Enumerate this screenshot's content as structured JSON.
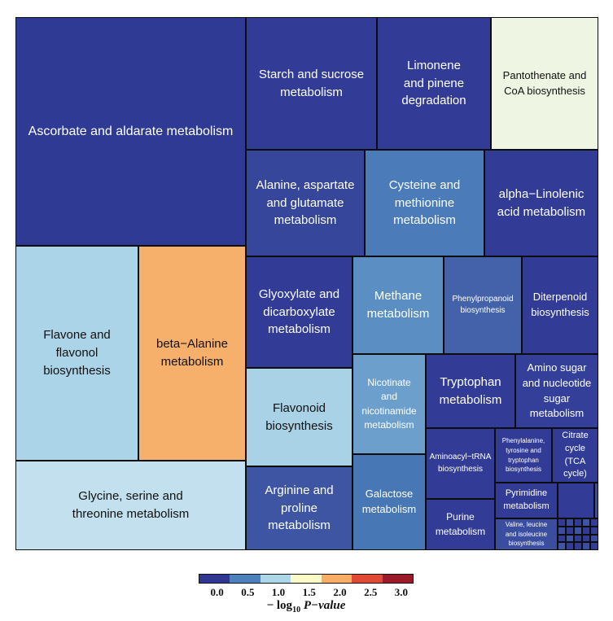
{
  "chart_data": {
    "type": "treemap",
    "title": "",
    "colorbar": {
      "label_prefix": "− log",
      "label_sub": "10",
      "label_suffix": "P−value",
      "ticks": [
        "0.0",
        "0.5",
        "1.0",
        "1.5",
        "2.0",
        "2.5",
        "3.0"
      ],
      "colors": [
        "#2f3793",
        "#4d80bc",
        "#add6e8",
        "#fbfbc7",
        "#f9ad67",
        "#df4a35",
        "#9b1b2a"
      ]
    },
    "tiles": [
      {
        "label": "Ascorbate and aldarate metabolism",
        "color": "#2f3a94",
        "neg_log_p": 0.1
      },
      {
        "label": "Starch and sucrose\nmetabolism",
        "color": "#323c97",
        "neg_log_p": 0.15
      },
      {
        "label": "Limonene\nand pinene\ndegradation",
        "color": "#323c97",
        "neg_log_p": 0.15
      },
      {
        "label": "Pantothenate and\nCoA biosynthesis",
        "color": "#eef6e3",
        "neg_log_p": 1.3
      },
      {
        "label": "Alanine, aspartate\nand glutamate\nmetabolism",
        "color": "#36469b",
        "neg_log_p": 0.2
      },
      {
        "label": "Cysteine and\nmethionine\nmetabolism",
        "color": "#4b7cb9",
        "neg_log_p": 0.5
      },
      {
        "label": "alpha−Linolenic\nacid metabolism",
        "color": "#323c97",
        "neg_log_p": 0.1
      },
      {
        "label": "Flavone and\nflavonol\nbiosynthesis",
        "color": "#acd4e8",
        "neg_log_p": 1.0
      },
      {
        "label": "beta−Alanine\nmetabolism",
        "color": "#f6b06b",
        "neg_log_p": 2.0
      },
      {
        "label": "Glyoxylate and\ndicarboxylate\nmetabolism",
        "color": "#323c97",
        "neg_log_p": 0.1
      },
      {
        "label": "Methane\nmetabolism",
        "color": "#5b8fc4",
        "neg_log_p": 0.6
      },
      {
        "label": "Phenylpropanoid\nbiosynthesis",
        "color": "#4462aa",
        "neg_log_p": 0.35
      },
      {
        "label": "Diterpenoid\nbiosynthesis",
        "color": "#323c97",
        "neg_log_p": 0.1
      },
      {
        "label": "Flavonoid\nbiosynthesis",
        "color": "#a9d2e7",
        "neg_log_p": 0.95
      },
      {
        "label": "Nicotinate\nand\nnicotinamide\nmetabolism",
        "color": "#6d9fcd",
        "neg_log_p": 0.7
      },
      {
        "label": "Tryptophan\nmetabolism",
        "color": "#323c97",
        "neg_log_p": 0.1
      },
      {
        "label": "Amino sugar\nand nucleotide\nsugar\nmetabolism",
        "color": "#343f99",
        "neg_log_p": 0.15
      },
      {
        "label": "Glycine, serine and\nthreonine metabolism",
        "color": "#c2e0ed",
        "neg_log_p": 1.1
      },
      {
        "label": "Arginine and\nproline\nmetabolism",
        "color": "#3d55a3",
        "neg_log_p": 0.3
      },
      {
        "label": "Galactose\nmetabolism",
        "color": "#4877b6",
        "neg_log_p": 0.45
      },
      {
        "label": "Aminoacyl−tRNA\nbiosynthesis",
        "color": "#323c97",
        "neg_log_p": 0.1
      },
      {
        "label": "Phenylalanine,\ntyrosine and\ntryptophan\nbiosynthesis",
        "color": "#323c97",
        "neg_log_p": 0.1
      },
      {
        "label": "Citrate\ncycle\n(TCA\ncycle)",
        "color": "#323c97",
        "neg_log_p": 0.1
      },
      {
        "label": "Purine\nmetabolism",
        "color": "#323c97",
        "neg_log_p": 0.1
      },
      {
        "label": "Pyrimidine\nmetabolism",
        "color": "#323c97",
        "neg_log_p": 0.1
      },
      {
        "label": "Valine, leucine\nand isoleucine\nbiosynthesis",
        "color": "#3a4d9f",
        "neg_log_p": 0.25
      },
      {
        "label": "",
        "color": "#323c97",
        "neg_log_p": 0.1
      },
      {
        "label": "",
        "color": "#3a4d9f",
        "neg_log_p": 0.25
      }
    ]
  }
}
